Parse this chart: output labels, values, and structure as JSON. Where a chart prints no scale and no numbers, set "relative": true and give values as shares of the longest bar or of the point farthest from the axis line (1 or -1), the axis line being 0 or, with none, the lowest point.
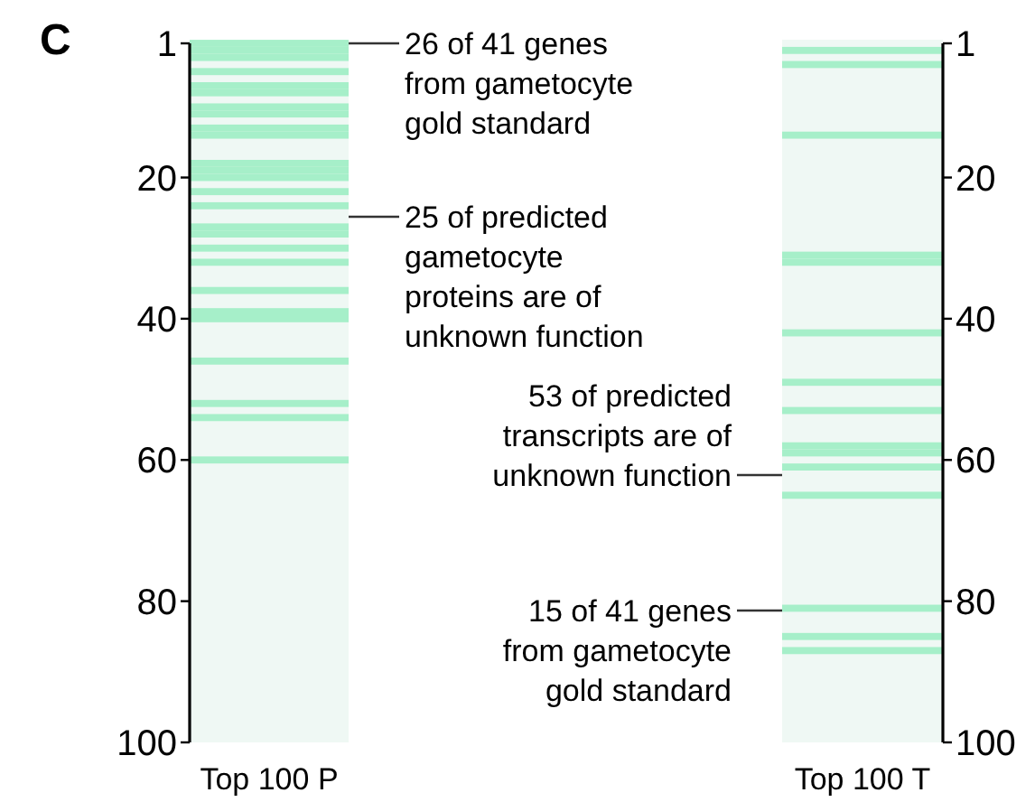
{
  "chart_data": [
    {
      "type": "bar",
      "orientation": "horizontal",
      "relative": true,
      "xlabel": "Top 100 P",
      "ylim": [
        100,
        1
      ],
      "yticks": [
        1,
        20,
        40,
        60,
        80,
        100
      ],
      "x": [
        1,
        2,
        3,
        5,
        7,
        8,
        10,
        11,
        13,
        14,
        18,
        19,
        20,
        22,
        24,
        27,
        28,
        30,
        32,
        36,
        39,
        40,
        46,
        52,
        54,
        60
      ],
      "values": [
        1,
        1,
        1,
        1,
        1,
        1,
        1,
        1,
        1,
        1,
        1,
        1,
        1,
        1,
        1,
        1,
        1,
        1,
        1,
        1,
        1,
        1,
        1,
        1,
        1,
        1
      ],
      "color": "#a6efc9",
      "annotations": [
        "C",
        "26 of 41 genes from gametocyte gold standard",
        "25 of predicted gametocyte proteins are of unknown function"
      ]
    },
    {
      "type": "bar",
      "orientation": "horizontal",
      "relative": true,
      "xlabel": "Top 100 T",
      "ylim": [
        100,
        1
      ],
      "yticks": [
        1,
        20,
        40,
        60,
        80,
        100
      ],
      "x": [
        2,
        4,
        14,
        31,
        32,
        42,
        49,
        53,
        58,
        59,
        61,
        65,
        81,
        85,
        87
      ],
      "values": [
        1,
        1,
        1,
        1,
        1,
        1,
        1,
        1,
        1,
        1,
        1,
        1,
        1,
        1,
        1
      ],
      "color": "#a6efc9",
      "annotations": [
        "53 of predicted transcripts are of unknown function",
        "15 of 41 genes from gametocyte gold standard"
      ]
    }
  ]
}
